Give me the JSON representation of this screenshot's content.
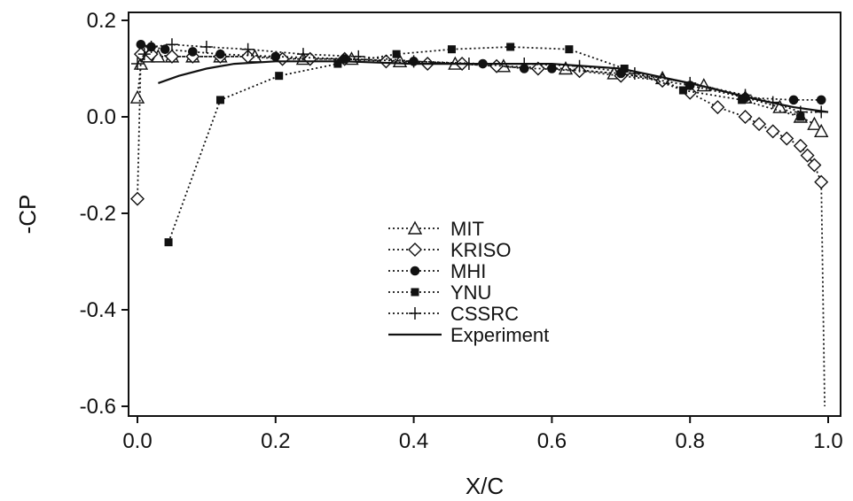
{
  "chart_data": {
    "type": "line",
    "xlabel": "X/C",
    "ylabel": "-CP",
    "xlim": [
      0.0,
      1.0
    ],
    "ylim": [
      -0.6,
      0.2
    ],
    "x_ticks": [
      0.0,
      0.2,
      0.4,
      0.6,
      0.8,
      1.0
    ],
    "x_tick_labels": [
      "0.0",
      "0.2",
      "0.4",
      "0.6",
      "0.8",
      "1.0"
    ],
    "y_ticks": [
      0.2,
      0.0,
      -0.2,
      -0.4,
      -0.6
    ],
    "y_tick_labels": [
      "0.2",
      "0.0",
      "-0.2",
      "-0.4",
      "-0.6"
    ],
    "grid": false,
    "legend_position": "center",
    "series": [
      {
        "name": "MIT",
        "marker": "triangle-open",
        "line": "dotted",
        "color": "#111111",
        "x": [
          0.0,
          0.005,
          0.015,
          0.03,
          0.05,
          0.08,
          0.12,
          0.17,
          0.24,
          0.31,
          0.38,
          0.46,
          0.53,
          0.62,
          0.69,
          0.76,
          0.82,
          0.88,
          0.93,
          0.96,
          0.98,
          0.99
        ],
        "y": [
          0.04,
          0.11,
          0.125,
          0.125,
          0.125,
          0.125,
          0.125,
          0.125,
          0.12,
          0.12,
          0.115,
          0.11,
          0.105,
          0.1,
          0.09,
          0.08,
          0.065,
          0.04,
          0.02,
          0.0,
          -0.015,
          -0.03
        ]
      },
      {
        "name": "KRISO",
        "marker": "diamond-open",
        "line": "dotted",
        "color": "#111111",
        "x": [
          0.0,
          0.005,
          0.02,
          0.05,
          0.08,
          0.12,
          0.16,
          0.21,
          0.25,
          0.3,
          0.36,
          0.42,
          0.47,
          0.52,
          0.58,
          0.64,
          0.7,
          0.76,
          0.8,
          0.84,
          0.88,
          0.9,
          0.92,
          0.94,
          0.96,
          0.97,
          0.98,
          0.99,
          0.995
        ],
        "y": [
          -0.17,
          0.13,
          0.13,
          0.125,
          0.125,
          0.125,
          0.125,
          0.12,
          0.12,
          0.12,
          0.115,
          0.11,
          0.11,
          0.105,
          0.1,
          0.095,
          0.085,
          0.075,
          0.05,
          0.02,
          0.0,
          -0.015,
          -0.03,
          -0.045,
          -0.06,
          -0.08,
          -0.1,
          -0.135,
          -0.6
        ]
      },
      {
        "name": "MHI",
        "marker": "circle-filled",
        "line": "dotted",
        "color": "#111111",
        "x": [
          0.005,
          0.02,
          0.04,
          0.08,
          0.12,
          0.2,
          0.3,
          0.4,
          0.5,
          0.56,
          0.6,
          0.7,
          0.8,
          0.88,
          0.95,
          0.99
        ],
        "y": [
          0.15,
          0.145,
          0.14,
          0.135,
          0.13,
          0.125,
          0.12,
          0.115,
          0.11,
          0.1,
          0.1,
          0.09,
          0.065,
          0.04,
          0.035,
          0.035
        ]
      },
      {
        "name": "YNU",
        "marker": "square-filled",
        "line": "dotted",
        "color": "#111111",
        "x": [
          0.045,
          0.12,
          0.205,
          0.29,
          0.375,
          0.455,
          0.54,
          0.625,
          0.705,
          0.79,
          0.875,
          0.96
        ],
        "y": [
          -0.26,
          0.035,
          0.085,
          0.11,
          0.13,
          0.14,
          0.145,
          0.14,
          0.1,
          0.055,
          0.035,
          0.0
        ]
      },
      {
        "name": "CSSRC",
        "marker": "plus",
        "line": "dotted",
        "color": "#111111",
        "x": [
          0.0,
          0.01,
          0.02,
          0.05,
          0.1,
          0.16,
          0.24,
          0.32,
          0.4,
          0.48,
          0.56,
          0.64,
          0.72,
          0.8,
          0.88,
          0.92,
          0.96,
          0.99
        ],
        "y": [
          0.11,
          0.13,
          0.145,
          0.15,
          0.145,
          0.14,
          0.13,
          0.125,
          0.115,
          0.11,
          0.11,
          0.105,
          0.09,
          0.07,
          0.045,
          0.03,
          0.01,
          0.01
        ]
      },
      {
        "name": "Experiment",
        "marker": "none",
        "line": "solid",
        "color": "#111111",
        "x": [
          0.03,
          0.06,
          0.1,
          0.14,
          0.2,
          0.3,
          0.4,
          0.5,
          0.6,
          0.7,
          0.8,
          0.9,
          0.95,
          1.0
        ],
        "y": [
          0.07,
          0.085,
          0.1,
          0.11,
          0.115,
          0.115,
          0.11,
          0.11,
          0.11,
          0.1,
          0.07,
          0.035,
          0.02,
          0.01
        ]
      }
    ]
  }
}
